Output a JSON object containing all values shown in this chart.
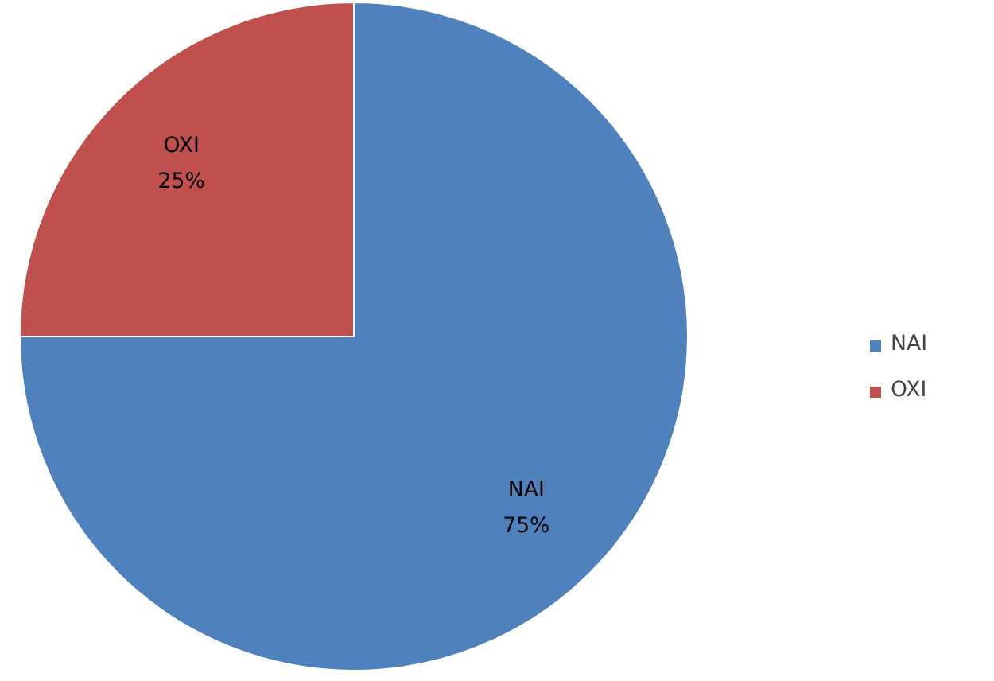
{
  "chart_data": {
    "type": "pie",
    "categories": [
      "NAI",
      "OXI"
    ],
    "values": [
      75,
      25
    ],
    "colors": [
      "#4f81bd",
      "#c0504d"
    ],
    "value_labels": [
      "75%",
      "25%"
    ],
    "legend": "right"
  }
}
